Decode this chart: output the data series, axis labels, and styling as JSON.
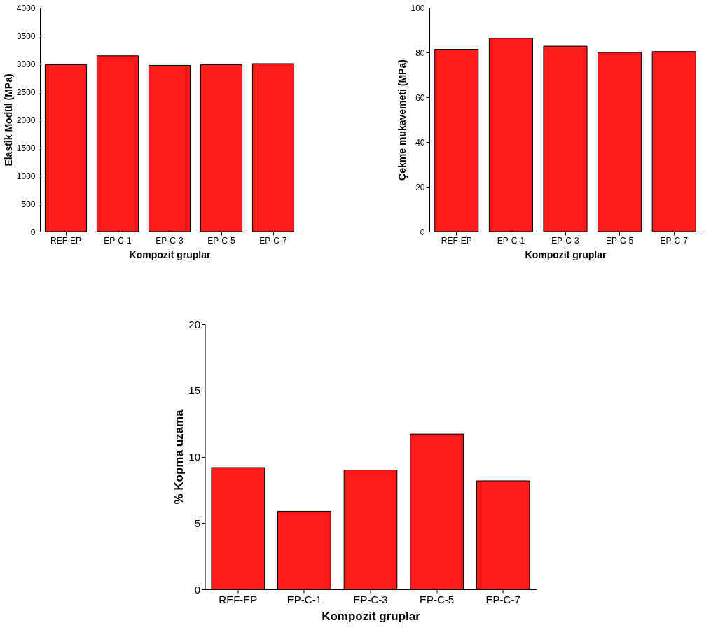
{
  "chart_data": [
    {
      "type": "bar",
      "categories": [
        "REF-EP",
        "EP-C-1",
        "EP-C-3",
        "EP-C-5",
        "EP-C-7"
      ],
      "xlabel": "Kompozit gruplar",
      "ylabel": "Elastik Modül (MPa)",
      "ylim": [
        0,
        4000
      ],
      "yticks": [
        0,
        500,
        1000,
        1500,
        2000,
        2500,
        3000,
        3500,
        4000
      ],
      "series": [
        {
          "color": "#ff1a1a",
          "values": [
            2980,
            3140,
            2970,
            2980,
            3000
          ]
        }
      ]
    },
    {
      "type": "bar",
      "categories": [
        "REF-EP",
        "EP-C-1",
        "EP-C-3",
        "EP-C-5",
        "EP-C-7"
      ],
      "xlabel": "Kompozit gruplar",
      "ylabel": "Çekme mukavemeti (MPa)",
      "ylim": [
        0,
        100
      ],
      "yticks": [
        0,
        20,
        40,
        60,
        80,
        100
      ],
      "series": [
        {
          "color": "#ff1a1a",
          "values": [
            81.4,
            86.3,
            82.8,
            80.0,
            80.4
          ]
        }
      ]
    },
    {
      "type": "bar",
      "categories": [
        "REF-EP",
        "EP-C-1",
        "EP-C-3",
        "EP-C-5",
        "EP-C-7"
      ],
      "xlabel": "Kompozit gruplar",
      "ylabel": "% Kopma uzama",
      "ylim": [
        0,
        20
      ],
      "yticks": [
        0,
        5,
        10,
        15,
        20
      ],
      "series": [
        {
          "color": "#ff1a1a",
          "values": [
            9.18,
            5.89,
            8.99,
            11.71,
            8.18
          ]
        }
      ]
    }
  ]
}
